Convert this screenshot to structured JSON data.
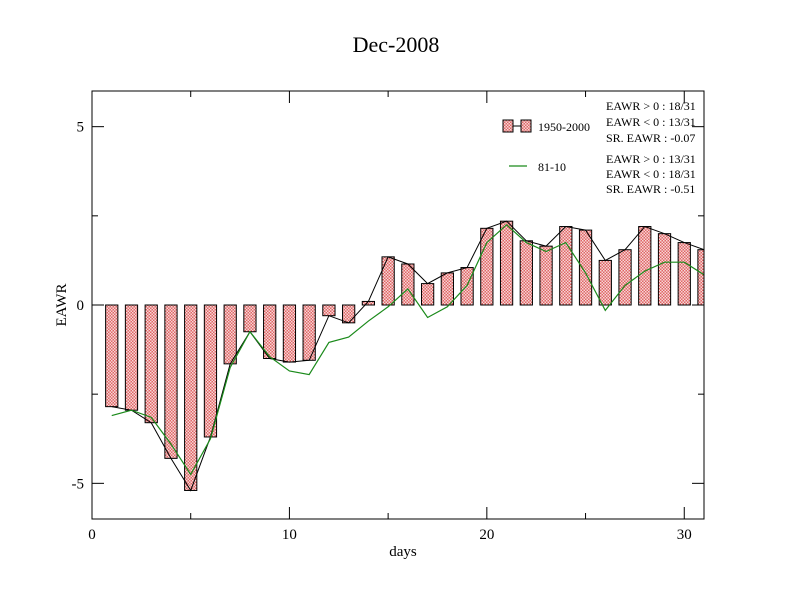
{
  "chart_data": {
    "type": "bar",
    "title": "Dec-2008",
    "xlabel": "days",
    "ylabel": "EAWR",
    "xlim": [
      0,
      31
    ],
    "ylim": [
      -6,
      6
    ],
    "xticks": [
      0,
      10,
      20,
      30
    ],
    "xtick_labels": [
      "0",
      "10",
      "20",
      "30"
    ],
    "yticks": [
      -5,
      0,
      5
    ],
    "ytick_labels": [
      "-5",
      "0",
      "5"
    ],
    "grid": false,
    "legend_position": "top-right",
    "x": [
      1,
      2,
      3,
      4,
      5,
      6,
      7,
      8,
      9,
      10,
      11,
      12,
      13,
      14,
      15,
      16,
      17,
      18,
      19,
      20,
      21,
      22,
      23,
      24,
      25,
      26,
      27,
      28,
      29,
      30,
      31
    ],
    "series": [
      {
        "name": "1950-2000",
        "kind": "bar",
        "color": "#e06666",
        "values": [
          -2.85,
          -2.95,
          -3.3,
          -4.3,
          -5.2,
          -3.7,
          -1.65,
          -0.75,
          -1.5,
          -1.6,
          -1.55,
          -0.3,
          -0.5,
          0.1,
          1.35,
          1.15,
          0.6,
          0.9,
          1.05,
          2.15,
          2.35,
          1.8,
          1.65,
          2.2,
          2.1,
          1.25,
          1.55,
          2.2,
          2.0,
          1.75,
          1.55
        ]
      },
      {
        "name": "81-10",
        "kind": "line",
        "color": "#1a8a1a",
        "values": [
          -3.1,
          -2.95,
          -3.15,
          -3.9,
          -4.75,
          -3.75,
          -1.75,
          -0.75,
          -1.45,
          -1.85,
          -1.95,
          -1.05,
          -0.9,
          -0.45,
          -0.05,
          0.45,
          -0.35,
          -0.05,
          0.55,
          1.75,
          2.25,
          1.75,
          1.5,
          1.75,
          0.9,
          -0.15,
          0.55,
          0.95,
          1.2,
          1.2,
          0.85
        ]
      }
    ],
    "stats": {
      "group1": [
        "EAWR > 0 : 18/31",
        "EAWR < 0 : 13/31",
        "SR. EAWR : -0.07"
      ],
      "group2": [
        "EAWR > 0 : 13/31",
        "EAWR < 0 : 18/31",
        "SR. EAWR : -0.51"
      ]
    }
  }
}
